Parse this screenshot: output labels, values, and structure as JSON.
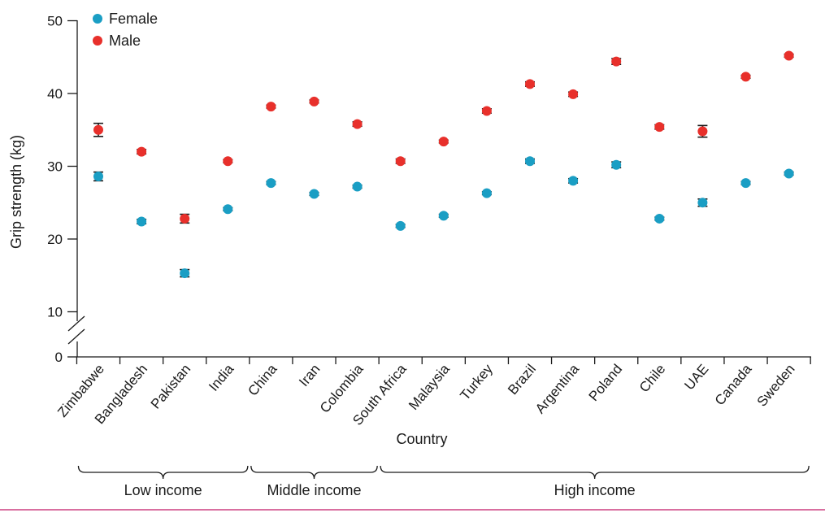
{
  "chart_data": {
    "type": "scatter",
    "xlabel": "Country",
    "ylabel": "Grip strength (kg)",
    "yticks": [
      0,
      10,
      20,
      30,
      40,
      50
    ],
    "ylim": [
      0,
      50
    ],
    "axis_break": "between 0 and 10",
    "legend_position": "top-left",
    "categories": [
      "Zimbabwe",
      "Bangladesh",
      "Pakistan",
      "India",
      "China",
      "Iran",
      "Colombia",
      "South Africa",
      "Malaysia",
      "Turkey",
      "Brazil",
      "Argentina",
      "Poland",
      "Chile",
      "UAE",
      "Canada",
      "Sweden"
    ],
    "series": [
      {
        "name": "Female",
        "color": "#1a9ec4",
        "values": [
          28.6,
          22.4,
          15.3,
          24.1,
          27.7,
          26.2,
          27.2,
          21.8,
          23.2,
          26.3,
          30.7,
          28.0,
          30.2,
          22.8,
          25.0,
          27.7,
          29.0
        ],
        "error": [
          0.6,
          0.3,
          0.5,
          0.2,
          0.2,
          0.2,
          0.2,
          0.2,
          0.2,
          0.2,
          0.3,
          0.3,
          0.4,
          0.2,
          0.5,
          0.2,
          0.2
        ]
      },
      {
        "name": "Male",
        "color": "#e8302b",
        "values": [
          35.0,
          32.0,
          22.8,
          30.7,
          38.2,
          38.9,
          35.8,
          30.7,
          33.4,
          37.6,
          41.3,
          39.9,
          44.4,
          35.4,
          34.8,
          42.3,
          45.2
        ],
        "error": [
          0.9,
          0.3,
          0.6,
          0.2,
          0.2,
          0.2,
          0.3,
          0.3,
          0.2,
          0.3,
          0.3,
          0.3,
          0.4,
          0.3,
          0.8,
          0.2,
          0.2
        ]
      }
    ],
    "groups": [
      {
        "label": "Low income",
        "from": 0,
        "to": 3
      },
      {
        "label": "Middle income",
        "from": 4,
        "to": 6
      },
      {
        "label": "High income",
        "from": 7,
        "to": 16
      }
    ]
  }
}
